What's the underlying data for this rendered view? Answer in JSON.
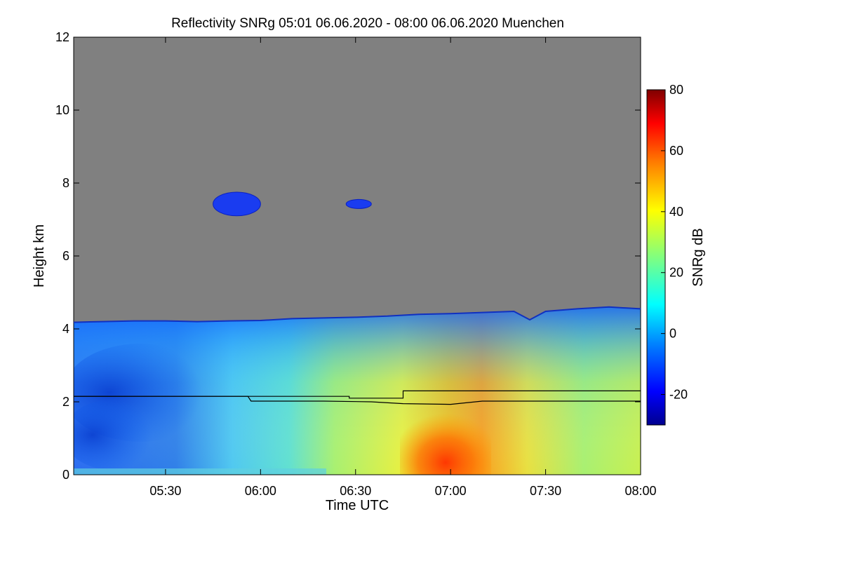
{
  "chart_data": {
    "type": "heatmap",
    "title": "Reflectivity SNRg   05:01 06.06.2020 - 08:00 06.06.2020 Muenchen",
    "xlabel": "Time UTC",
    "ylabel": "Height km",
    "colorbar_label": "SNRg dB",
    "x_range_minutes": [
      301,
      480
    ],
    "x_ticks": [
      {
        "value": 330,
        "label": "05:30"
      },
      {
        "value": 360,
        "label": "06:00"
      },
      {
        "value": 390,
        "label": "06:30"
      },
      {
        "value": 420,
        "label": "07:00"
      },
      {
        "value": 450,
        "label": "07:30"
      },
      {
        "value": 480,
        "label": "08:00"
      }
    ],
    "ylim": [
      0,
      12
    ],
    "y_ticks": [
      0,
      2,
      4,
      6,
      8,
      10,
      12
    ],
    "colorbar_range": [
      -30,
      80
    ],
    "colorbar_ticks": [
      -20,
      0,
      20,
      40,
      60,
      80
    ],
    "no_data_color": "#808080",
    "colormap": [
      "#00008f",
      "#0000ff",
      "#0080ff",
      "#00ffff",
      "#80ff80",
      "#ffff00",
      "#ff8000",
      "#ff0000",
      "#800000"
    ],
    "echo_top_km": [
      [
        301,
        4.18
      ],
      [
        310,
        4.2
      ],
      [
        320,
        4.22
      ],
      [
        330,
        4.22
      ],
      [
        340,
        4.2
      ],
      [
        350,
        4.22
      ],
      [
        360,
        4.23
      ],
      [
        370,
        4.28
      ],
      [
        380,
        4.3
      ],
      [
        390,
        4.32
      ],
      [
        400,
        4.35
      ],
      [
        410,
        4.4
      ],
      [
        420,
        4.42
      ],
      [
        430,
        4.45
      ],
      [
        440,
        4.48
      ],
      [
        445,
        4.25
      ],
      [
        450,
        4.48
      ],
      [
        460,
        4.55
      ],
      [
        470,
        4.6
      ],
      [
        480,
        4.55
      ]
    ],
    "cloud_patches": [
      {
        "t_start": 345,
        "t_end": 360,
        "h_bottom": 7.1,
        "h_top": 7.75,
        "snr_db": -20
      },
      {
        "t_start": 387,
        "t_end": 395,
        "h_bottom": 7.3,
        "h_top": 7.55,
        "snr_db": -20
      }
    ],
    "lines": [
      {
        "points": [
          [
            301,
            2.15
          ],
          [
            388,
            2.15
          ],
          [
            388,
            2.1
          ],
          [
            405,
            2.1
          ],
          [
            405,
            2.3
          ],
          [
            480,
            2.3
          ]
        ]
      },
      {
        "points": [
          [
            301,
            2.15
          ],
          [
            356,
            2.15
          ],
          [
            357,
            2.02
          ],
          [
            380,
            2.02
          ],
          [
            395,
            2.0
          ],
          [
            405,
            1.95
          ],
          [
            420,
            1.93
          ],
          [
            430,
            2.02
          ],
          [
            480,
            2.02
          ]
        ]
      }
    ]
  }
}
